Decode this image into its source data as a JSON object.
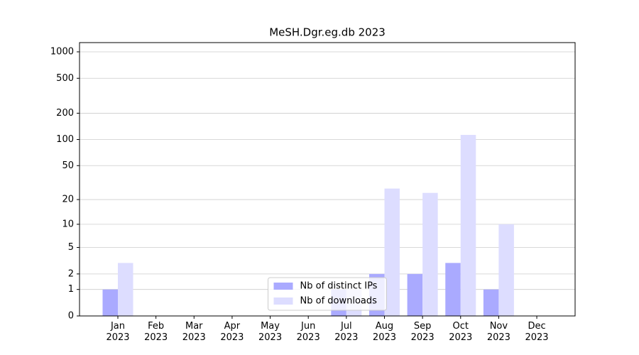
{
  "chart_data": {
    "type": "bar",
    "title": "MeSH.Dgr.eg.db 2023",
    "categories": [
      "Jan 2023",
      "Feb 2023",
      "Mar 2023",
      "Apr 2023",
      "May 2023",
      "Jun 2023",
      "Jul 2023",
      "Aug 2023",
      "Sep 2023",
      "Oct 2023",
      "Nov 2023",
      "Dec 2023"
    ],
    "series": [
      {
        "name": "Nb of distinct IPs",
        "color": "#aaaaff",
        "values": [
          1,
          0,
          0,
          0,
          0,
          0,
          1,
          2,
          2,
          3,
          1,
          0
        ]
      },
      {
        "name": "Nb of downloads",
        "color": "#ddddff",
        "values": [
          3,
          0,
          0,
          0,
          0,
          0,
          1,
          27,
          24,
          113,
          10,
          0
        ]
      }
    ],
    "yscale": "symlog",
    "ylim": [
      0,
      1273
    ],
    "yticks": [
      0,
      1,
      2,
      5,
      10,
      20,
      50,
      100,
      200,
      500,
      1000
    ],
    "grid": true,
    "legend": "lower center"
  }
}
